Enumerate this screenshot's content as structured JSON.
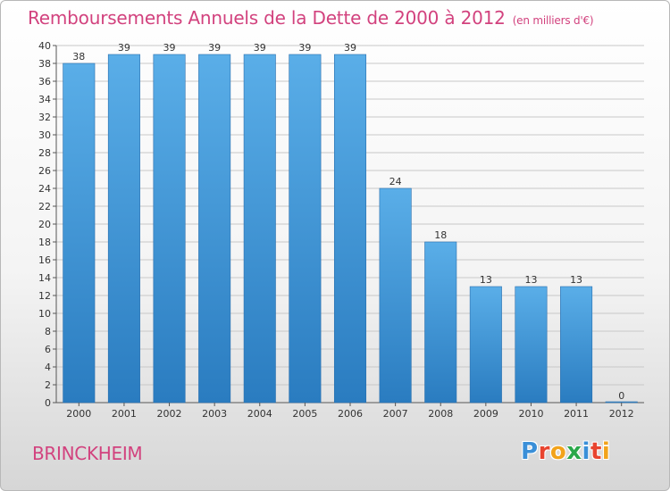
{
  "header": {
    "title": "Remboursements Annuels de la Dette de 2000 à 2012",
    "subtitle": "(en milliers d'€)"
  },
  "footer": {
    "commune": "BRINCKHEIM",
    "logo_letters": [
      "P",
      "r",
      "o",
      "x",
      "i",
      "t",
      "i"
    ],
    "logo_colors": [
      "#3a8fd8",
      "#e8442f",
      "#f2a31b",
      "#2aa84a",
      "#3a8fd8",
      "#e8442f",
      "#f2a31b"
    ]
  },
  "colors": {
    "title": "#d2427e",
    "bar_top": "#5aaee8",
    "bar_bottom": "#2a7cc0",
    "grid": "#c8c8c8"
  },
  "chart_data": {
    "type": "bar",
    "title": "Remboursements Annuels de la Dette de 2000 à 2012",
    "subtitle": "(en milliers d'€)",
    "categories": [
      "2000",
      "2001",
      "2002",
      "2003",
      "2004",
      "2005",
      "2006",
      "2007",
      "2008",
      "2009",
      "2010",
      "2011",
      "2012"
    ],
    "values": [
      38,
      39,
      39,
      39,
      39,
      39,
      39,
      24,
      18,
      13,
      13,
      13,
      0
    ],
    "ylim": [
      0,
      40
    ],
    "yticks": [
      0,
      2,
      4,
      6,
      8,
      10,
      12,
      14,
      16,
      18,
      20,
      22,
      24,
      26,
      28,
      30,
      32,
      34,
      36,
      38,
      40
    ],
    "grid": true
  }
}
